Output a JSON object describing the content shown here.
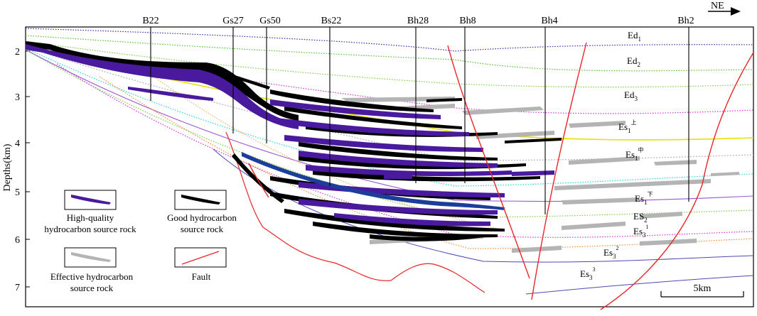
{
  "axis": {
    "label": "Depths(km)",
    "ticks": [
      "2",
      "3",
      "4",
      "5",
      "6",
      "7"
    ]
  },
  "orientation": "NE",
  "wells": [
    "B22",
    "Gs27",
    "Gs50",
    "Bs22",
    "Bh28",
    "Bh8",
    "Bh4",
    "Bh2"
  ],
  "strata": [
    {
      "base": "Ed",
      "sub": "1",
      "sup": ""
    },
    {
      "base": "Ed",
      "sub": "2",
      "sup": ""
    },
    {
      "base": "Ed",
      "sub": "3",
      "sup": ""
    },
    {
      "base": "Es",
      "sub": "1",
      "sup": "上"
    },
    {
      "base": "Es",
      "sub": "1",
      "sup": "中"
    },
    {
      "base": "Es",
      "sub": "1",
      "sup": "下"
    },
    {
      "base": "ES",
      "sub": "2",
      "sup": ""
    },
    {
      "base": "Es",
      "sub": "3",
      "sup": "1"
    },
    {
      "base": "Es",
      "sub": "3",
      "sup": "2"
    },
    {
      "base": "Es",
      "sub": "3",
      "sup": "3"
    }
  ],
  "legend": {
    "high_quality": [
      "High-quality",
      "hydrocarbon source rock"
    ],
    "good": [
      "Good hydrocarbon",
      "source rock"
    ],
    "effective": [
      "Effective hydrocarbon",
      "source rock"
    ],
    "fault": [
      "Fault"
    ]
  },
  "scale_bar": "5km",
  "colors": {
    "high_quality": "#4a1a9e",
    "good": "#000000",
    "effective": "#b4b4b4",
    "fault": "#e8262a",
    "blue_layer": "#1c3e9a"
  }
}
